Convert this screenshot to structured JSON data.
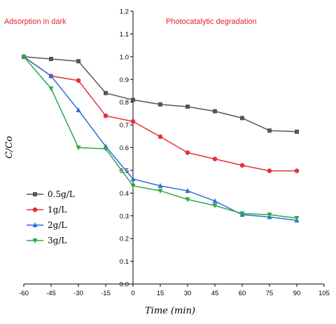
{
  "chart_data": {
    "type": "line",
    "title": "",
    "xlabel": "Time (min)",
    "ylabel": "C/Co",
    "xlim": [
      -60,
      105
    ],
    "ylim": [
      0.0,
      1.2
    ],
    "x_ticks": [
      "-60",
      "-45",
      "-30",
      "-15",
      "0",
      "15",
      "30",
      "45",
      "60",
      "75",
      "90",
      "105"
    ],
    "y_ticks": [
      "0.0",
      "0.1",
      "0.2",
      "0.3",
      "0.4",
      "0.5",
      "0.6",
      "0.7",
      "0.8",
      "0.9",
      "1.0",
      "1.1",
      "1.2"
    ],
    "x": [
      -60,
      -45,
      -30,
      -15,
      0,
      15,
      30,
      45,
      60,
      75,
      90
    ],
    "annotations": [
      "Adsorption in dark",
      "Photocatalytic degradation"
    ],
    "legend_position": "left",
    "grid": false,
    "series": [
      {
        "name": "0.5g/L",
        "color": "#555555",
        "marker": "square",
        "values": [
          1.0,
          0.99,
          0.98,
          0.84,
          0.81,
          0.79,
          0.78,
          0.76,
          0.73,
          0.675,
          0.67
        ]
      },
      {
        "name": "1g/L",
        "color": "#e8303a",
        "marker": "circle",
        "values": [
          1.0,
          0.915,
          0.895,
          0.74,
          0.715,
          0.648,
          0.578,
          0.55,
          0.522,
          0.498,
          0.498
        ]
      },
      {
        "name": "2g/L",
        "color": "#2f6fd6",
        "marker": "triangle-up",
        "values": [
          1.0,
          0.915,
          0.765,
          0.605,
          0.462,
          0.432,
          0.41,
          0.365,
          0.305,
          0.295,
          0.28
        ]
      },
      {
        "name": "3g/L",
        "color": "#2ea84a",
        "marker": "triangle-down",
        "values": [
          1.0,
          0.86,
          0.6,
          0.595,
          0.432,
          0.41,
          0.372,
          0.345,
          0.31,
          0.305,
          0.29
        ]
      }
    ]
  }
}
